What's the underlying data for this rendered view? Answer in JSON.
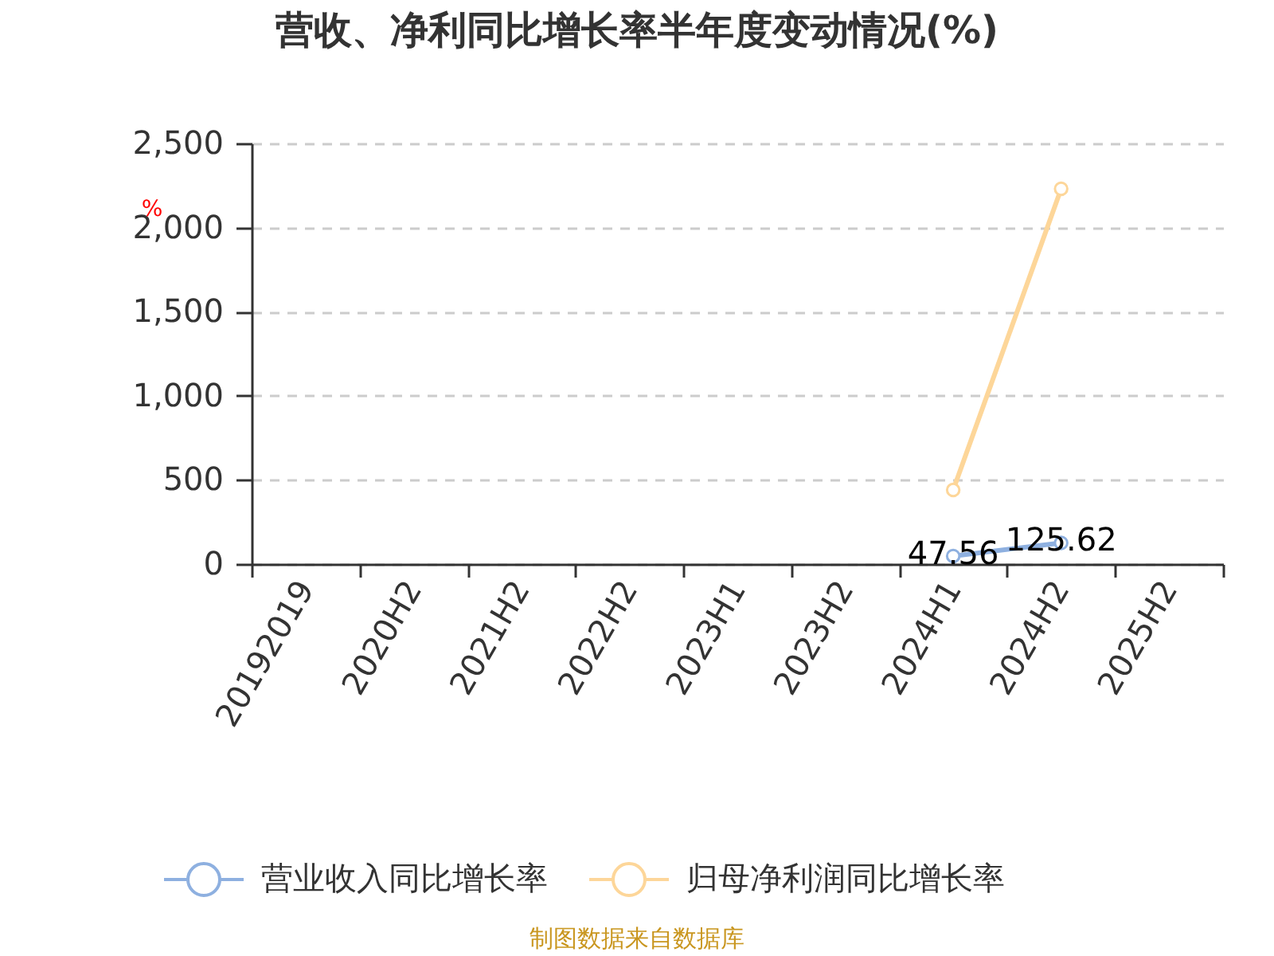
{
  "chart_data": {
    "type": "line",
    "title": "营收、净利同比增长率半年度变动情况(%)",
    "ylabel": "%",
    "categories": [
      "20192019",
      "2020H2",
      "2021H2",
      "2022H2",
      "2023H1",
      "2023H2",
      "2024H1",
      "2024H2",
      "2025H2"
    ],
    "series": [
      {
        "name": "营业收入同比增长率",
        "color": "#8eb0e0",
        "values": [
          null,
          null,
          null,
          null,
          null,
          null,
          47.56,
          125.62,
          null
        ],
        "value_labels": [
          null,
          null,
          null,
          null,
          null,
          null,
          "47.56",
          "125.62",
          null
        ]
      },
      {
        "name": "归母净利润同比增长率",
        "color": "#fdd699",
        "values": [
          null,
          null,
          null,
          null,
          null,
          null,
          440,
          2230,
          null
        ]
      }
    ],
    "ylim": [
      0,
      2500
    ],
    "yticks": [
      0,
      500,
      {
        "value": 1000,
        "label": "1,000"
      },
      {
        "value": 1500,
        "label": "1,500"
      },
      {
        "value": 2000,
        "label": "2,000"
      },
      {
        "value": 2500,
        "label": "2,500"
      }
    ],
    "grid": "y",
    "legend": "bottom",
    "marker": "circle",
    "annotations": [
      "制图数据来自数据库"
    ]
  }
}
